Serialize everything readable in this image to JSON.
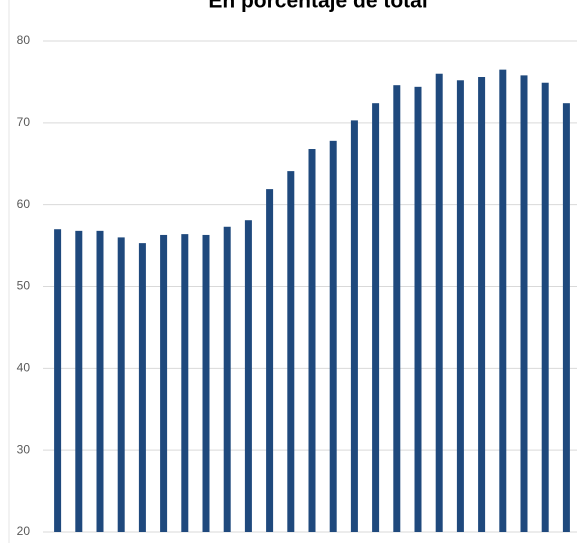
{
  "chart_data": {
    "type": "bar",
    "title": "En porcentaje de total",
    "categories": [
      null,
      null,
      null,
      null,
      null,
      null,
      null,
      null,
      null,
      null,
      null,
      null,
      null,
      null,
      null,
      null,
      null,
      null,
      null,
      null,
      null,
      null,
      null,
      null,
      null
    ],
    "values": [
      57.0,
      56.8,
      56.8,
      56.0,
      55.3,
      56.3,
      56.4,
      56.3,
      57.3,
      58.1,
      61.9,
      64.1,
      66.8,
      67.8,
      70.3,
      72.4,
      74.6,
      74.4,
      76.0,
      75.2,
      75.6,
      76.5,
      75.8,
      74.9,
      72.4
    ],
    "color": "#1f497d",
    "ylim": [
      20,
      80
    ],
    "yticks": [
      20,
      30,
      40,
      50,
      60,
      70,
      80
    ],
    "grid": true
  }
}
